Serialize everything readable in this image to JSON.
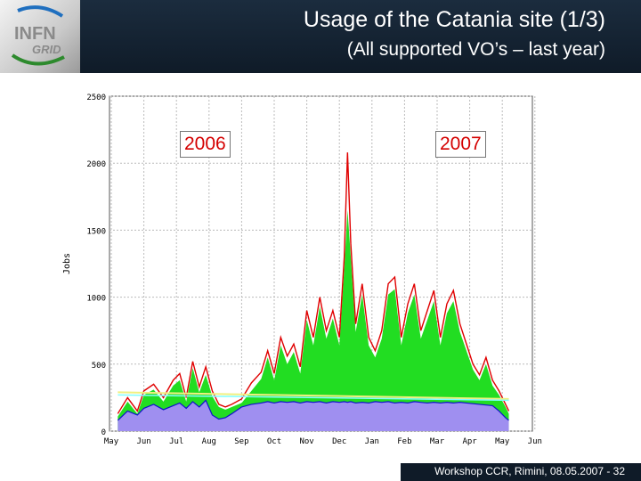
{
  "header": {
    "title": "Usage of the Catania site (1/3)",
    "subtitle": "(All supported VO’s – last year)",
    "logo_top": "INFN",
    "logo_bottom": "GRID"
  },
  "footer": {
    "text": "Workshop CCR, Rimini, 08.05.2007  -  32"
  },
  "annotations": {
    "year_a": "2006",
    "year_b": "2007"
  },
  "colors": {
    "header_bg": "#1b2c3e",
    "total_jobs": "#e00000",
    "green_area": "#22dd22",
    "purple_area": "#9f8ff0",
    "blue_line": "#1010cc",
    "yellow_line": "#f0f080",
    "cyan_line": "#80ffff"
  },
  "chart_data": {
    "type": "area",
    "title": "",
    "xlabel": "",
    "ylabel": "Jobs",
    "ylim": [
      0,
      2500
    ],
    "yticks": [
      "0",
      "500",
      "1000",
      "1500",
      "2000",
      "2500"
    ],
    "xticks": [
      "May",
      "Jun",
      "Jul",
      "Aug",
      "Sep",
      "Oct",
      "Nov",
      "Dec",
      "Jan",
      "Feb",
      "Mar",
      "Apr",
      "May",
      "Jun"
    ],
    "grid": true,
    "x_unit": "month index from May 2006",
    "series": [
      {
        "values": [
          [
            0.2,
            130
          ],
          [
            0.5,
            250
          ],
          [
            0.8,
            150
          ],
          [
            1.0,
            300
          ],
          [
            1.3,
            350
          ],
          [
            1.6,
            250
          ],
          [
            1.9,
            380
          ],
          [
            2.1,
            430
          ],
          [
            2.3,
            250
          ],
          [
            2.5,
            520
          ],
          [
            2.7,
            330
          ],
          [
            2.9,
            480
          ],
          [
            3.1,
            300
          ],
          [
            3.3,
            200
          ],
          [
            3.5,
            180
          ],
          [
            3.7,
            200
          ],
          [
            4.0,
            240
          ],
          [
            4.3,
            360
          ],
          [
            4.6,
            440
          ],
          [
            4.8,
            600
          ],
          [
            5.0,
            430
          ],
          [
            5.2,
            700
          ],
          [
            5.4,
            560
          ],
          [
            5.6,
            650
          ],
          [
            5.8,
            480
          ],
          [
            6.0,
            900
          ],
          [
            6.2,
            700
          ],
          [
            6.4,
            1000
          ],
          [
            6.6,
            750
          ],
          [
            6.8,
            900
          ],
          [
            7.0,
            700
          ],
          [
            7.15,
            1300
          ],
          [
            7.25,
            2080
          ],
          [
            7.35,
            1400
          ],
          [
            7.5,
            800
          ],
          [
            7.7,
            1100
          ],
          [
            7.9,
            700
          ],
          [
            8.1,
            600
          ],
          [
            8.3,
            750
          ],
          [
            8.5,
            1100
          ],
          [
            8.7,
            1150
          ],
          [
            8.9,
            700
          ],
          [
            9.1,
            950
          ],
          [
            9.3,
            1100
          ],
          [
            9.5,
            750
          ],
          [
            9.7,
            900
          ],
          [
            9.9,
            1050
          ],
          [
            10.1,
            700
          ],
          [
            10.3,
            950
          ],
          [
            10.5,
            1050
          ],
          [
            10.7,
            800
          ],
          [
            10.9,
            650
          ],
          [
            11.1,
            500
          ],
          [
            11.3,
            420
          ],
          [
            11.5,
            550
          ],
          [
            11.7,
            380
          ],
          [
            11.9,
            300
          ],
          [
            12.1,
            200
          ],
          [
            12.2,
            150
          ]
        ]
      },
      {
        "values": [
          [
            0.2,
            110
          ],
          [
            0.5,
            220
          ],
          [
            0.8,
            130
          ],
          [
            1.0,
            270
          ],
          [
            1.3,
            310
          ],
          [
            1.6,
            220
          ],
          [
            1.9,
            340
          ],
          [
            2.1,
            380
          ],
          [
            2.3,
            220
          ],
          [
            2.5,
            470
          ],
          [
            2.7,
            290
          ],
          [
            2.9,
            420
          ],
          [
            3.1,
            260
          ],
          [
            3.3,
            180
          ],
          [
            3.5,
            160
          ],
          [
            3.7,
            180
          ],
          [
            4.0,
            210
          ],
          [
            4.3,
            300
          ],
          [
            4.6,
            390
          ],
          [
            4.8,
            550
          ],
          [
            5.0,
            380
          ],
          [
            5.2,
            640
          ],
          [
            5.4,
            500
          ],
          [
            5.6,
            590
          ],
          [
            5.8,
            430
          ],
          [
            6.0,
            830
          ],
          [
            6.2,
            640
          ],
          [
            6.4,
            930
          ],
          [
            6.6,
            690
          ],
          [
            6.8,
            840
          ],
          [
            7.0,
            640
          ],
          [
            7.15,
            1220
          ],
          [
            7.25,
            1650
          ],
          [
            7.35,
            1300
          ],
          [
            7.5,
            740
          ],
          [
            7.7,
            1020
          ],
          [
            7.9,
            640
          ],
          [
            8.1,
            550
          ],
          [
            8.3,
            690
          ],
          [
            8.5,
            1020
          ],
          [
            8.7,
            1060
          ],
          [
            8.9,
            640
          ],
          [
            9.1,
            880
          ],
          [
            9.3,
            1020
          ],
          [
            9.5,
            690
          ],
          [
            9.7,
            830
          ],
          [
            9.9,
            970
          ],
          [
            10.1,
            640
          ],
          [
            10.3,
            880
          ],
          [
            10.5,
            970
          ],
          [
            10.7,
            740
          ],
          [
            10.9,
            600
          ],
          [
            11.1,
            460
          ],
          [
            11.3,
            380
          ],
          [
            11.5,
            500
          ],
          [
            11.7,
            340
          ],
          [
            11.9,
            270
          ],
          [
            12.1,
            180
          ],
          [
            12.2,
            130
          ]
        ]
      },
      {
        "values": [
          [
            0.2,
            80
          ],
          [
            0.5,
            150
          ],
          [
            0.8,
            120
          ],
          [
            1.0,
            170
          ],
          [
            1.3,
            200
          ],
          [
            1.6,
            160
          ],
          [
            1.9,
            190
          ],
          [
            2.1,
            210
          ],
          [
            2.3,
            170
          ],
          [
            2.5,
            220
          ],
          [
            2.7,
            180
          ],
          [
            2.9,
            230
          ],
          [
            3.1,
            120
          ],
          [
            3.3,
            90
          ],
          [
            3.5,
            100
          ],
          [
            3.7,
            130
          ],
          [
            4.0,
            180
          ],
          [
            4.3,
            200
          ],
          [
            4.6,
            210
          ],
          [
            4.8,
            220
          ],
          [
            5.0,
            210
          ],
          [
            5.2,
            220
          ],
          [
            5.4,
            215
          ],
          [
            5.6,
            220
          ],
          [
            5.8,
            210
          ],
          [
            6.0,
            220
          ],
          [
            6.2,
            215
          ],
          [
            6.4,
            220
          ],
          [
            6.6,
            210
          ],
          [
            6.8,
            220
          ],
          [
            7.0,
            215
          ],
          [
            7.15,
            220
          ],
          [
            7.25,
            215
          ],
          [
            7.35,
            220
          ],
          [
            7.5,
            210
          ],
          [
            7.7,
            215
          ],
          [
            7.9,
            210
          ],
          [
            8.1,
            220
          ],
          [
            8.3,
            215
          ],
          [
            8.5,
            220
          ],
          [
            8.7,
            210
          ],
          [
            8.9,
            215
          ],
          [
            9.1,
            210
          ],
          [
            9.3,
            220
          ],
          [
            9.5,
            215
          ],
          [
            9.7,
            210
          ],
          [
            9.9,
            215
          ],
          [
            10.1,
            210
          ],
          [
            10.3,
            215
          ],
          [
            10.5,
            210
          ],
          [
            10.7,
            215
          ],
          [
            10.9,
            210
          ],
          [
            11.1,
            205
          ],
          [
            11.3,
            200
          ],
          [
            11.5,
            195
          ],
          [
            11.7,
            190
          ],
          [
            11.9,
            150
          ],
          [
            12.1,
            100
          ],
          [
            12.2,
            80
          ]
        ]
      },
      {
        "values": [
          [
            0.2,
            290
          ],
          [
            12.2,
            240
          ]
        ]
      },
      {
        "values": [
          [
            0.2,
            270
          ],
          [
            12.2,
            230
          ]
        ]
      }
    ]
  }
}
